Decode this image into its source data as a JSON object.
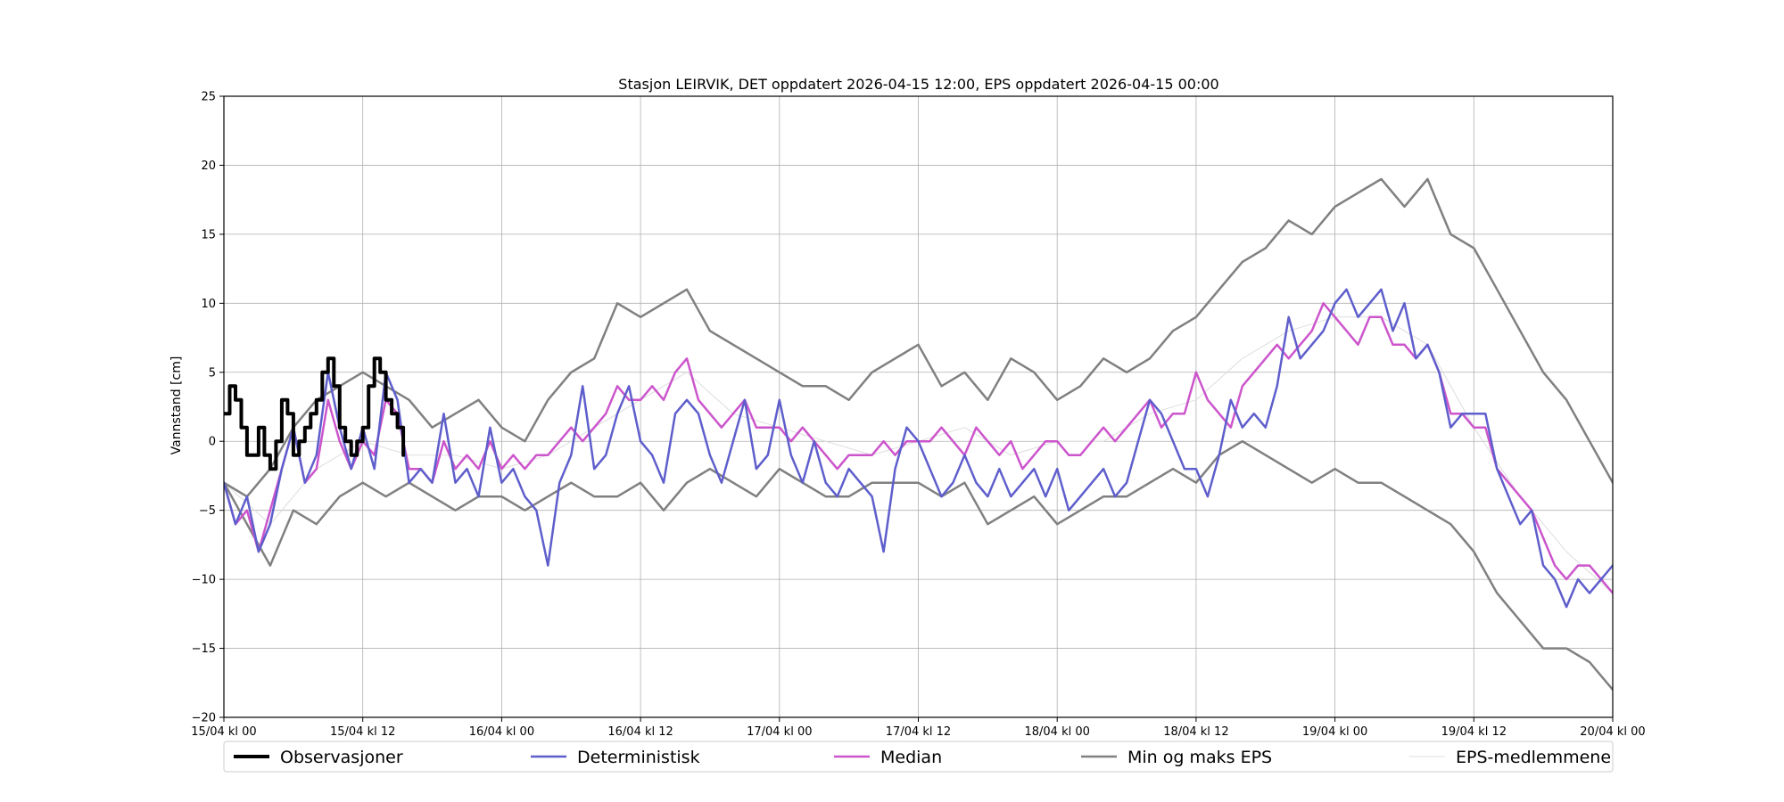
{
  "chart_data": {
    "type": "line",
    "title": "Stasjon LEIRVIK, DET oppdatert 2026-04-15 12:00, EPS oppdatert 2026-04-15 00:00",
    "ylabel": "Vannstand [cm]",
    "xlabel": "",
    "xlim": [
      0,
      120
    ],
    "ylim": [
      -20,
      25
    ],
    "grid": true,
    "legend_placement": "bottom",
    "x_unit": "hours since 15/04 kl 00",
    "x_ticks": [
      0,
      12,
      24,
      36,
      48,
      60,
      72,
      84,
      96,
      108,
      120
    ],
    "x_tick_labels": [
      "15/04 kl 00",
      "15/04 kl 12",
      "16/04 kl 00",
      "16/04 kl 12",
      "17/04 kl 00",
      "17/04 kl 12",
      "18/04 kl 00",
      "18/04 kl 12",
      "19/04 kl 00",
      "19/04 kl 12",
      "20/04 kl 00"
    ],
    "y_ticks": [
      -20,
      -15,
      -10,
      -5,
      0,
      5,
      10,
      15,
      20,
      25
    ],
    "y_tick_labels": [
      "−20",
      "−15",
      "−10",
      "−5",
      "0",
      "5",
      "10",
      "15",
      "20",
      "25"
    ],
    "series": [
      {
        "name": "Observasjoner",
        "color": "#000000",
        "x": [
          0,
          0.5,
          1,
          1.5,
          2,
          2.5,
          3,
          3.5,
          4,
          4.5,
          5,
          5.5,
          6,
          6.5,
          7,
          7.5,
          8,
          8.5,
          9,
          9.5,
          10,
          10.5,
          11,
          11.5,
          12,
          12.5,
          13,
          13.5,
          14,
          14.5,
          15,
          15.5
        ],
        "values": [
          2,
          4,
          3,
          1,
          -1,
          -1,
          1,
          -1,
          -2,
          0,
          3,
          2,
          -1,
          0,
          1,
          2,
          3,
          5,
          6,
          4,
          1,
          0,
          -1,
          0,
          1,
          4,
          6,
          5,
          3,
          2,
          1,
          -1
        ]
      },
      {
        "name": "Deterministisk",
        "color": "#5e5ecc",
        "x": [
          0,
          1,
          2,
          3,
          4,
          5,
          6,
          7,
          8,
          9,
          10,
          11,
          12,
          13,
          14,
          15,
          16,
          17,
          18,
          19,
          20,
          21,
          22,
          23,
          24,
          25,
          26,
          27,
          28,
          29,
          30,
          31,
          32,
          33,
          34,
          35,
          36,
          37,
          38,
          39,
          40,
          41,
          42,
          43,
          44,
          45,
          46,
          47,
          48,
          49,
          50,
          51,
          52,
          53,
          54,
          55,
          56,
          57,
          58,
          59,
          60,
          61,
          62,
          63,
          64,
          65,
          66,
          67,
          68,
          69,
          70,
          71,
          72,
          73,
          74,
          75,
          76,
          77,
          78,
          79,
          80,
          81,
          82,
          83,
          84,
          85,
          86,
          87,
          88,
          89,
          90,
          91,
          92,
          93,
          94,
          95,
          96,
          97,
          98,
          99,
          100,
          101,
          102,
          103,
          104,
          105,
          106,
          107,
          108,
          109,
          110,
          111,
          112,
          113,
          114,
          115,
          116,
          117,
          118,
          119,
          120
        ],
        "values": [
          -3,
          -6,
          -4,
          -8,
          -6,
          -2,
          1,
          -3,
          -1,
          5,
          1,
          -2,
          1,
          -2,
          5,
          3,
          -3,
          -2,
          -3,
          2,
          -3,
          -2,
          -4,
          1,
          -3,
          -2,
          -4,
          -5,
          -9,
          -3,
          -1,
          4,
          -2,
          -1,
          2,
          4,
          0,
          -1,
          -3,
          2,
          3,
          2,
          -1,
          -3,
          0,
          3,
          -2,
          -1,
          3,
          -1,
          -3,
          0,
          -3,
          -4,
          -2,
          -3,
          -4,
          -8,
          -2,
          1,
          0,
          -2,
          -4,
          -3,
          -1,
          -3,
          -4,
          -2,
          -4,
          -3,
          -2,
          -4,
          -2,
          -5,
          -4,
          -3,
          -2,
          -4,
          -3,
          0,
          3,
          2,
          0,
          -2,
          -2,
          -4,
          -1,
          3,
          1,
          2,
          1,
          4,
          9,
          6,
          7,
          8,
          10,
          11,
          9,
          10,
          11,
          8,
          10,
          6,
          7,
          5,
          1,
          2,
          2,
          2,
          -2,
          -4,
          -6,
          -5,
          -9,
          -10,
          -12,
          -10,
          -11,
          -10,
          -9
        ]
      },
      {
        "name": "Median",
        "color": "#cc55cc",
        "x": [
          0,
          1,
          2,
          3,
          4,
          5,
          6,
          7,
          8,
          9,
          10,
          11,
          12,
          13,
          14,
          15,
          16,
          17,
          18,
          19,
          20,
          21,
          22,
          23,
          24,
          25,
          26,
          27,
          28,
          29,
          30,
          31,
          32,
          33,
          34,
          35,
          36,
          37,
          38,
          39,
          40,
          41,
          42,
          43,
          44,
          45,
          46,
          47,
          48,
          49,
          50,
          51,
          52,
          53,
          54,
          55,
          56,
          57,
          58,
          59,
          60,
          61,
          62,
          63,
          64,
          65,
          66,
          67,
          68,
          69,
          70,
          71,
          72,
          73,
          74,
          75,
          76,
          77,
          78,
          79,
          80,
          81,
          82,
          83,
          84,
          85,
          86,
          87,
          88,
          89,
          90,
          91,
          92,
          93,
          94,
          95,
          96,
          97,
          98,
          99,
          100,
          101,
          102,
          103,
          104,
          105,
          106,
          107,
          108,
          109,
          110,
          111,
          112,
          113,
          114,
          115,
          116,
          117,
          118,
          119,
          120
        ],
        "values": [
          -3,
          -6,
          -5,
          -8,
          -5,
          -2,
          1,
          -3,
          -2,
          3,
          0,
          -2,
          0,
          -1,
          3,
          2,
          -2,
          -2,
          -3,
          0,
          -2,
          -1,
          -2,
          0,
          -2,
          -1,
          -2,
          -1,
          -1,
          0,
          1,
          0,
          1,
          2,
          4,
          3,
          3,
          4,
          3,
          5,
          6,
          3,
          2,
          1,
          2,
          3,
          1,
          1,
          1,
          0,
          1,
          0,
          -1,
          -2,
          -1,
          -1,
          -1,
          0,
          -1,
          0,
          0,
          0,
          1,
          0,
          -1,
          1,
          0,
          -1,
          0,
          -2,
          -1,
          0,
          0,
          -1,
          -1,
          0,
          1,
          0,
          1,
          2,
          3,
          1,
          2,
          2,
          5,
          3,
          2,
          1,
          4,
          5,
          6,
          7,
          6,
          7,
          8,
          10,
          9,
          8,
          7,
          9,
          9,
          7,
          7,
          6,
          7,
          5,
          2,
          2,
          1,
          1,
          -2,
          -3,
          -4,
          -5,
          -7,
          -9,
          -10,
          -9,
          -9,
          -10,
          -11
        ]
      },
      {
        "name": "Min og maks EPS",
        "color": "#808080",
        "x": [
          0,
          2,
          4,
          6,
          8,
          10,
          12,
          14,
          16,
          18,
          20,
          22,
          24,
          26,
          28,
          30,
          32,
          34,
          36,
          38,
          40,
          42,
          44,
          46,
          48,
          50,
          52,
          54,
          56,
          58,
          60,
          62,
          64,
          66,
          68,
          70,
          72,
          74,
          76,
          78,
          80,
          82,
          84,
          86,
          88,
          90,
          92,
          94,
          96,
          98,
          100,
          102,
          104,
          106,
          108,
          110,
          112,
          114,
          116,
          118,
          120
        ],
        "values": [
          -3,
          -4,
          -2,
          1,
          3,
          4,
          5,
          4,
          3,
          1,
          2,
          3,
          1,
          0,
          3,
          5,
          6,
          10,
          9,
          10,
          11,
          8,
          7,
          6,
          5,
          4,
          4,
          3,
          5,
          6,
          7,
          4,
          5,
          3,
          6,
          5,
          3,
          4,
          6,
          5,
          6,
          8,
          9,
          11,
          13,
          14,
          16,
          15,
          17,
          18,
          19,
          17,
          19,
          15,
          14,
          11,
          8,
          5,
          3,
          0,
          -3
        ]
      },
      {
        "name": "",
        "color": "#808080",
        "x": [
          0,
          2,
          4,
          6,
          8,
          10,
          12,
          14,
          16,
          18,
          20,
          22,
          24,
          26,
          28,
          30,
          32,
          34,
          36,
          38,
          40,
          42,
          44,
          46,
          48,
          50,
          52,
          54,
          56,
          58,
          60,
          62,
          64,
          66,
          68,
          70,
          72,
          74,
          76,
          78,
          80,
          82,
          84,
          86,
          88,
          90,
          92,
          94,
          96,
          98,
          100,
          102,
          104,
          106,
          108,
          110,
          112,
          114,
          116,
          118,
          120
        ],
        "values": [
          -3,
          -6,
          -9,
          -5,
          -6,
          -4,
          -3,
          -4,
          -3,
          -4,
          -5,
          -4,
          -4,
          -5,
          -4,
          -3,
          -4,
          -4,
          -3,
          -5,
          -3,
          -2,
          -3,
          -4,
          -2,
          -3,
          -4,
          -4,
          -3,
          -3,
          -3,
          -4,
          -3,
          -6,
          -5,
          -4,
          -6,
          -5,
          -4,
          -4,
          -3,
          -2,
          -3,
          -1,
          0,
          -1,
          -2,
          -3,
          -2,
          -3,
          -3,
          -4,
          -5,
          -6,
          -8,
          -11,
          -13,
          -15,
          -15,
          -16,
          -18
        ]
      },
      {
        "name": "EPS-medlemmene",
        "color": "#dddddd",
        "x": [
          0,
          4,
          8,
          12,
          16,
          20,
          24,
          28,
          32,
          36,
          40,
          44,
          48,
          52,
          56,
          60,
          64,
          68,
          72,
          76,
          80,
          84,
          88,
          92,
          96,
          100,
          104,
          108,
          112,
          116,
          120
        ],
        "values": [
          -3,
          -6,
          -2,
          0,
          -1,
          -1,
          -2,
          -1,
          1,
          3,
          5,
          2,
          1,
          0,
          -1,
          0,
          1,
          -1,
          0,
          0,
          2,
          3,
          6,
          8,
          9,
          9,
          7,
          1,
          -4,
          -8,
          -11
        ]
      }
    ],
    "legend": [
      {
        "label": "Observasjoner",
        "color": "#000000"
      },
      {
        "label": "Deterministisk",
        "color": "#5e5ecc"
      },
      {
        "label": "Median",
        "color": "#cc55cc"
      },
      {
        "label": "Min og maks EPS",
        "color": "#808080"
      },
      {
        "label": "EPS-medlemmene",
        "color": "#dddddd"
      }
    ]
  }
}
